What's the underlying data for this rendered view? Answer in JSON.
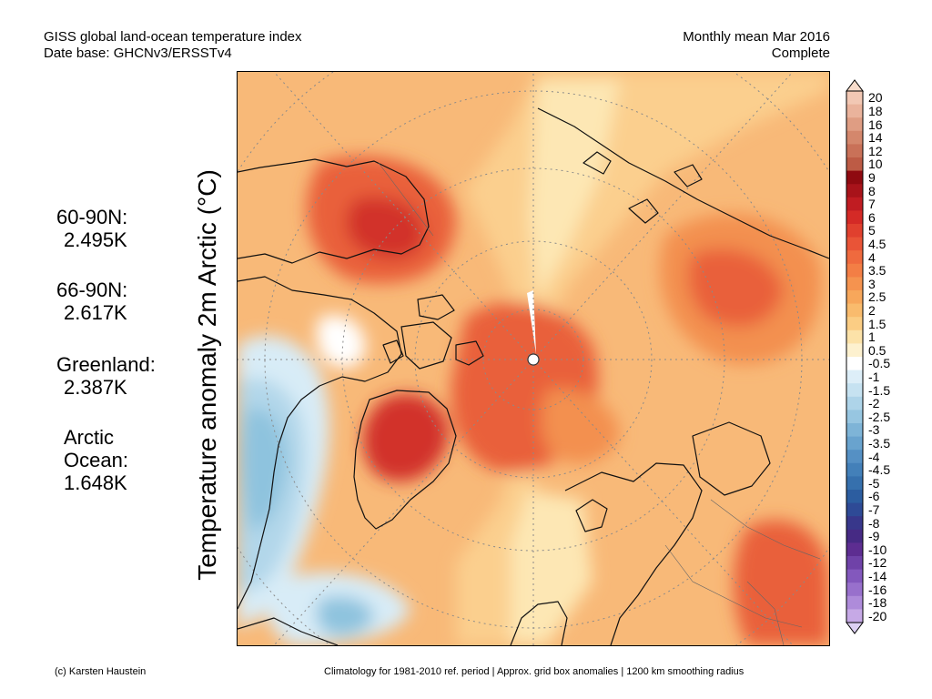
{
  "header": {
    "left_line1": "GISS global land-ocean temperature index",
    "left_line2": "Date base: GHCNv3/ERSSTv4",
    "right_line1": "Monthly mean Mar 2016",
    "right_line2": "Complete"
  },
  "regions": [
    {
      "name": "60-90N:",
      "value": "2.495K"
    },
    {
      "name": "66-90N:",
      "value": "2.617K"
    },
    {
      "name": "Greenland:",
      "value": "2.387K"
    },
    {
      "name_line1": "Arctic",
      "name_line2": "Ocean:",
      "value": "1.648K"
    }
  ],
  "y_axis_label": "Temperature anomaly 2m Arctic (°C)",
  "colorbar": {
    "labels": [
      "20",
      "18",
      "16",
      "14",
      "12",
      "10",
      "9",
      "8",
      "7",
      "6",
      "5",
      "4.5",
      "4",
      "3.5",
      "3",
      "2.5",
      "2",
      "1.5",
      "1",
      "0.5",
      "-0.5",
      "-1",
      "-1.5",
      "-2",
      "-2.5",
      "-3",
      "-3.5",
      "-4",
      "-4.5",
      "-5",
      "-6",
      "-7",
      "-8",
      "-9",
      "-10",
      "-12",
      "-14",
      "-16",
      "-18",
      "-20"
    ],
    "colors": [
      "#f2c8b4",
      "#eab39c",
      "#df9d83",
      "#d4876c",
      "#c97158",
      "#bd5b45",
      "#8f0a10",
      "#a8131a",
      "#c01c22",
      "#d42a26",
      "#e0402e",
      "#e95437",
      "#ef6a3e",
      "#f37e45",
      "#f5934f",
      "#f7a75b",
      "#f9bb6d",
      "#fbcd84",
      "#fce2a8",
      "#fdf1cf",
      "#ffffff",
      "#ddeef8",
      "#c6e2f1",
      "#aed4e9",
      "#97c6e1",
      "#7eb4d7",
      "#69a3ce",
      "#5590c4",
      "#4380b9",
      "#3670ad",
      "#2c5da0",
      "#2e4a96",
      "#38378b",
      "#462a84",
      "#5d2d91",
      "#6f42a8",
      "#8358bd",
      "#9870cc",
      "#ae8bda",
      "#c6a9e6"
    ]
  },
  "footer": {
    "left": "(c) Karsten Haustein",
    "right": "Climatology for 1981-2010 ref. period | Approx. grid box anomalies | 1200 km smoothing radius"
  },
  "map_colors": {
    "base": "#f8b978",
    "warm_light": "#fbcf8e",
    "warm_pale": "#fde7b4",
    "warm_mid": "#f3904f",
    "warm_strong": "#e9603a",
    "warm_hot": "#d2302a",
    "neutral": "#ffffff",
    "cold_pale": "#d8ecf7",
    "cold_light": "#b2d7ea",
    "cold_mid": "#8ec3de"
  }
}
